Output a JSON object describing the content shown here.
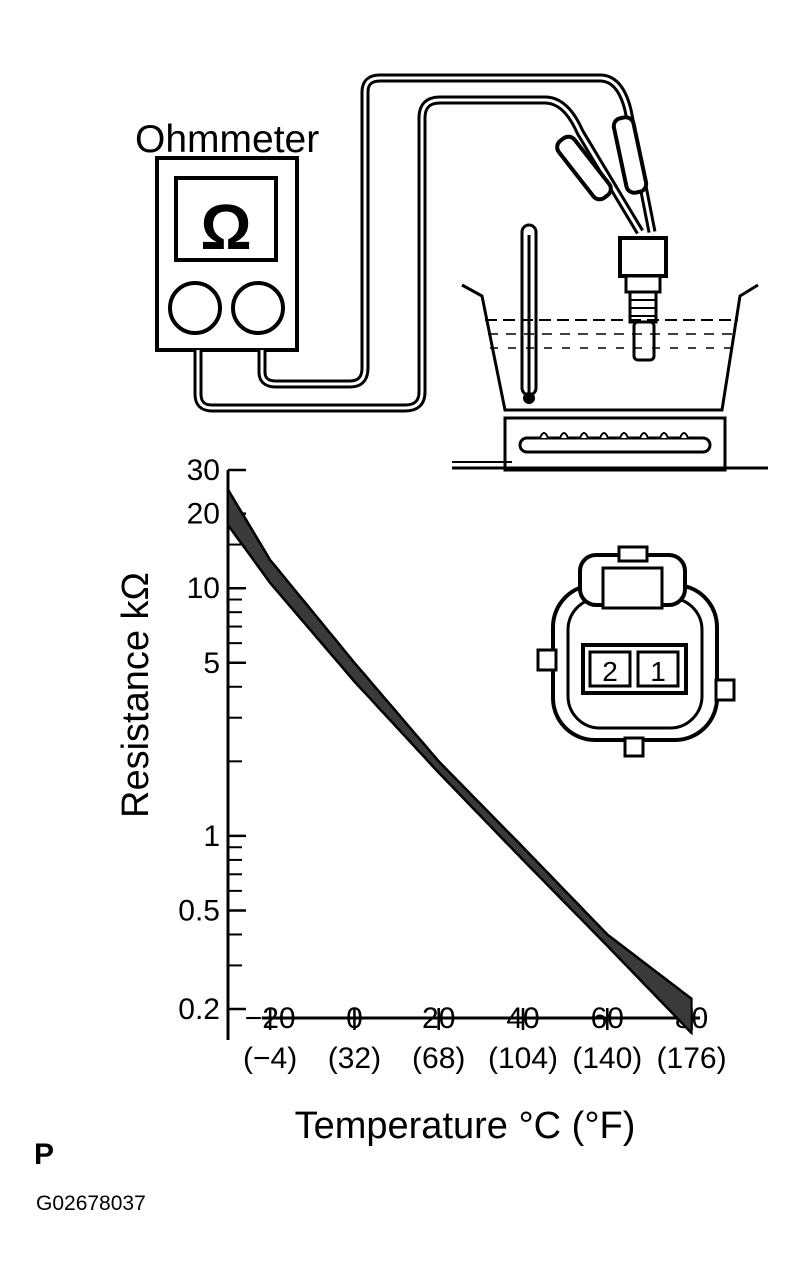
{
  "illustration": {
    "meter_label": "Ohmmeter",
    "meter_symbol": "Ω",
    "connector_pins": [
      "2",
      "1"
    ]
  },
  "chart_data": {
    "type": "line",
    "title": "",
    "xlabel": "Temperature °C (°F)",
    "ylabel": "Resistance kΩ",
    "yscale": "log",
    "ylim": [
      0.15,
      30
    ],
    "xlim": [
      -30,
      82
    ],
    "grid": false,
    "x_ticks": [
      -20,
      0,
      20,
      40,
      60,
      80
    ],
    "x_tick_labels": [
      "−20",
      "0",
      "20",
      "40",
      "60",
      "80"
    ],
    "x_tick_labels_f": [
      "(−4)",
      "(32)",
      "(68)",
      "(104)",
      "(140)",
      "(176)"
    ],
    "y_ticks": [
      30,
      20,
      10,
      5,
      1,
      0.5,
      0.2
    ],
    "y_tick_labels": [
      "30",
      "20",
      "10",
      "5",
      "1",
      "0.5",
      "0.2"
    ],
    "series": [
      {
        "x": [
          -30,
          -20,
          0,
          20,
          40,
          60,
          80
        ],
        "values": [
          25,
          13,
          5.0,
          2.0,
          0.9,
          0.4,
          0.22
        ]
      },
      {
        "x": [
          -30,
          -20,
          0,
          20,
          40,
          60,
          80
        ],
        "values": [
          18,
          10.5,
          4.2,
          1.8,
          0.8,
          0.36,
          0.16
        ]
      }
    ],
    "band_color": "#3a3a3a"
  },
  "footer": {
    "letter": "P",
    "code": "G02678037"
  }
}
